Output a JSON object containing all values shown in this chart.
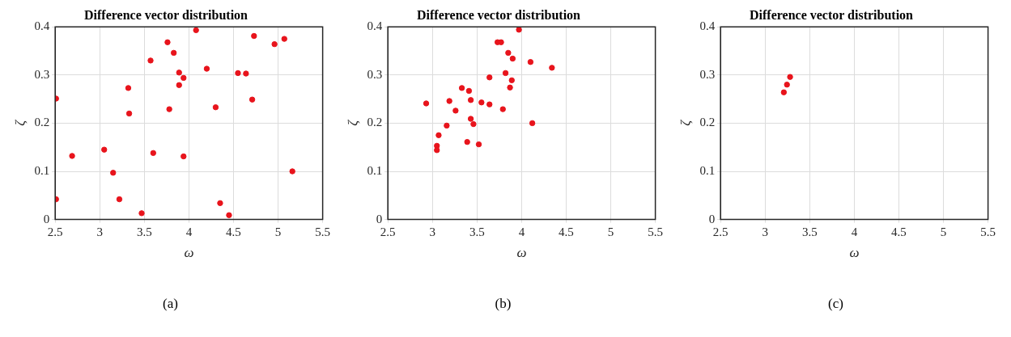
{
  "chart_data": [
    {
      "type": "scatter",
      "title": "Difference vector distribution",
      "xlabel": "ω",
      "ylabel": "ζ",
      "xlim": [
        2.5,
        5.5
      ],
      "ylim": [
        0,
        0.4
      ],
      "xticks": [
        2.5,
        3,
        3.5,
        4,
        4.5,
        5,
        5.5
      ],
      "yticks": [
        0,
        0.1,
        0.2,
        0.3,
        0.4
      ],
      "grid": true,
      "legend": false,
      "marker": "circle",
      "annotations": [
        "(a)"
      ],
      "series": [
        {
          "color": "#e8141c",
          "x": [
            2.51,
            2.51,
            2.69,
            3.05,
            3.15,
            3.22,
            3.32,
            3.33,
            3.47,
            3.57,
            3.6,
            3.76,
            3.78,
            3.83,
            3.89,
            3.89,
            3.94,
            3.94,
            4.08,
            4.2,
            4.3,
            4.35,
            4.45,
            4.55,
            4.64,
            4.71,
            4.73,
            4.96,
            5.07,
            5.16
          ],
          "values": [
            0.251,
            0.042,
            0.132,
            0.145,
            0.097,
            0.042,
            0.273,
            0.22,
            0.013,
            0.33,
            0.138,
            0.368,
            0.229,
            0.346,
            0.305,
            0.279,
            0.294,
            0.131,
            0.393,
            0.313,
            0.233,
            0.034,
            0.009,
            0.304,
            0.303,
            0.249,
            0.381,
            0.364,
            0.375,
            0.1
          ]
        }
      ]
    },
    {
      "type": "scatter",
      "title": "Difference vector distribution",
      "xlabel": "ω",
      "ylabel": "ζ",
      "xlim": [
        2.5,
        5.5
      ],
      "ylim": [
        0,
        0.4
      ],
      "xticks": [
        2.5,
        3,
        3.5,
        4,
        4.5,
        5,
        5.5
      ],
      "yticks": [
        0,
        0.1,
        0.2,
        0.3,
        0.4
      ],
      "grid": true,
      "legend": false,
      "marker": "circle",
      "annotations": [
        "(b)"
      ],
      "series": [
        {
          "color": "#e8141c",
          "x": [
            2.93,
            3.05,
            3.05,
            3.07,
            3.16,
            3.19,
            3.26,
            3.33,
            3.39,
            3.41,
            3.43,
            3.43,
            3.46,
            3.52,
            3.55,
            3.64,
            3.64,
            3.73,
            3.77,
            3.79,
            3.82,
            3.85,
            3.87,
            3.89,
            3.9,
            3.97,
            4.1,
            4.12,
            4.34
          ],
          "values": [
            0.241,
            0.153,
            0.144,
            0.175,
            0.195,
            0.246,
            0.226,
            0.273,
            0.161,
            0.267,
            0.248,
            0.209,
            0.198,
            0.156,
            0.243,
            0.295,
            0.239,
            0.368,
            0.368,
            0.229,
            0.304,
            0.346,
            0.274,
            0.289,
            0.334,
            0.394,
            0.327,
            0.2,
            0.315
          ]
        }
      ]
    },
    {
      "type": "scatter",
      "title": "Difference vector distribution",
      "xlabel": "ω",
      "ylabel": "ζ",
      "xlim": [
        2.5,
        5.5
      ],
      "ylim": [
        0,
        0.4
      ],
      "xticks": [
        2.5,
        3,
        3.5,
        4,
        4.5,
        5,
        5.5
      ],
      "yticks": [
        0,
        0.1,
        0.2,
        0.3,
        0.4
      ],
      "grid": true,
      "legend": false,
      "marker": "circle",
      "annotations": [
        "(c)"
      ],
      "series": [
        {
          "color": "#e8141c",
          "x": [
            3.21,
            3.245,
            3.28
          ],
          "values": [
            0.264,
            0.28,
            0.296
          ]
        }
      ]
    }
  ]
}
